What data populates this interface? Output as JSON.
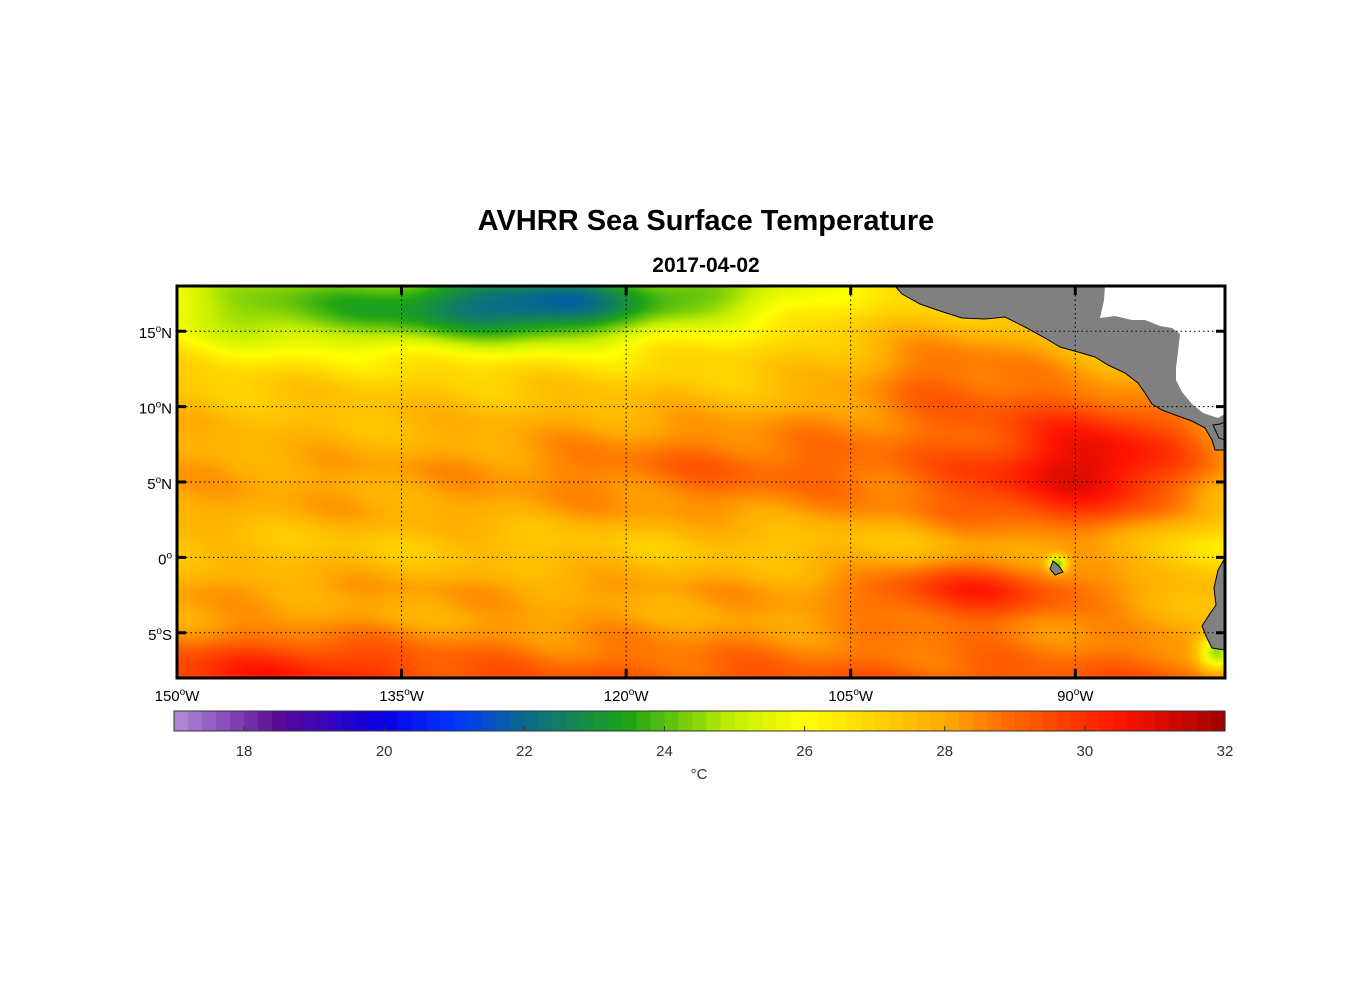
{
  "title": "AVHRR Sea Surface Temperature",
  "subtitle": "2017-04-02",
  "colorbar": {
    "min": 17,
    "max": 32,
    "ticks": [
      "18",
      "20",
      "22",
      "24",
      "26",
      "28",
      "30",
      "32"
    ],
    "tick_values": [
      18,
      20,
      22,
      24,
      26,
      28,
      30,
      32
    ],
    "unit_label": "°C",
    "stops": [
      {
        "v": 17,
        "c": "#b48edc"
      },
      {
        "v": 18.5,
        "c": "#5a0a96"
      },
      {
        "v": 20,
        "c": "#0a00e6"
      },
      {
        "v": 21,
        "c": "#0036ff"
      },
      {
        "v": 22,
        "c": "#0a6a8c"
      },
      {
        "v": 23.5,
        "c": "#1ea514"
      },
      {
        "v": 25,
        "c": "#c8f000"
      },
      {
        "v": 26,
        "c": "#ffff00"
      },
      {
        "v": 27,
        "c": "#ffd200"
      },
      {
        "v": 28,
        "c": "#ffaa00"
      },
      {
        "v": 29,
        "c": "#ff6400"
      },
      {
        "v": 30.5,
        "c": "#ff1400"
      },
      {
        "v": 32,
        "c": "#a00000"
      }
    ]
  },
  "map": {
    "lon_range": [
      -150,
      -80
    ],
    "lat_range": [
      -8,
      18
    ],
    "x_ticks": [
      {
        "value": -150,
        "label": "150",
        "sup": "o",
        "hemi": "W"
      },
      {
        "value": -135,
        "label": "135",
        "sup": "o",
        "hemi": "W"
      },
      {
        "value": -120,
        "label": "120",
        "sup": "o",
        "hemi": "W"
      },
      {
        "value": -105,
        "label": "105",
        "sup": "o",
        "hemi": "W"
      },
      {
        "value": -90,
        "label": "90",
        "sup": "o",
        "hemi": "W"
      }
    ],
    "y_ticks": [
      {
        "value": 15,
        "label": "15",
        "sup": "o",
        "hemi": "N"
      },
      {
        "value": 10,
        "label": "10",
        "sup": "o",
        "hemi": "N"
      },
      {
        "value": 5,
        "label": "5",
        "sup": "o",
        "hemi": "N"
      },
      {
        "value": 0,
        "label": "0",
        "sup": "o",
        "hemi": ""
      },
      {
        "value": -5,
        "label": "5",
        "sup": "o",
        "hemi": "S"
      }
    ],
    "land_color": "#808080",
    "sst_field": {
      "base_by_lat": [
        {
          "lat": 18,
          "t": 26.3
        },
        {
          "lat": 15,
          "t": 26.6
        },
        {
          "lat": 12,
          "t": 27.1
        },
        {
          "lat": 9,
          "t": 27.8
        },
        {
          "lat": 6,
          "t": 28.1
        },
        {
          "lat": 3,
          "t": 27.9
        },
        {
          "lat": 1,
          "t": 27.3
        },
        {
          "lat": 0,
          "t": 27.4
        },
        {
          "lat": -2,
          "t": 28.1
        },
        {
          "lat": -4,
          "t": 28.0
        },
        {
          "lat": -6,
          "t": 28.6
        },
        {
          "lat": -8,
          "t": 29.2
        }
      ],
      "anomalies": [
        {
          "lon": -133,
          "lat": 16.5,
          "dlon": 10,
          "dlat": 2.6,
          "dt": -3.0
        },
        {
          "lon": -124,
          "lat": 16.8,
          "dlon": 7,
          "dlat": 2.4,
          "dt": -3.1
        },
        {
          "lon": -145,
          "lat": 16.5,
          "dlon": 6,
          "dlat": 3,
          "dt": -1.4
        },
        {
          "lon": -114,
          "lat": 17.5,
          "dlon": 6,
          "dlat": 2,
          "dt": -1.6
        },
        {
          "lon": -98,
          "lat": 12.5,
          "dlon": 8,
          "dlat": 4,
          "dt": 1.8
        },
        {
          "lon": -88,
          "lat": 7,
          "dlon": 7,
          "dlat": 4,
          "dt": 2.4
        },
        {
          "lon": -93,
          "lat": 4,
          "dlon": 8,
          "dlat": 3,
          "dt": 1.2
        },
        {
          "lon": -97,
          "lat": -2.3,
          "dlon": 7,
          "dlat": 2.2,
          "dt": 2.0
        },
        {
          "lon": -112,
          "lat": 6,
          "dlon": 14,
          "dlat": 3,
          "dt": 0.9
        },
        {
          "lon": -140,
          "lat": 8.5,
          "dlon": 12,
          "dlat": 2,
          "dt": -0.3
        },
        {
          "lon": -143,
          "lat": -7.3,
          "dlon": 9,
          "dlat": 2,
          "dt": 1.2
        },
        {
          "lon": -80.5,
          "lat": 1,
          "dlon": 3,
          "dlat": 6,
          "dt": -1.0
        },
        {
          "lon": -91.2,
          "lat": -0.4,
          "dlon": 0.6,
          "dlat": 0.5,
          "dt": -4.0
        },
        {
          "lon": -80.5,
          "lat": -6.3,
          "dlon": 1.2,
          "dlat": 1.2,
          "dt": -4.0
        }
      ]
    }
  }
}
